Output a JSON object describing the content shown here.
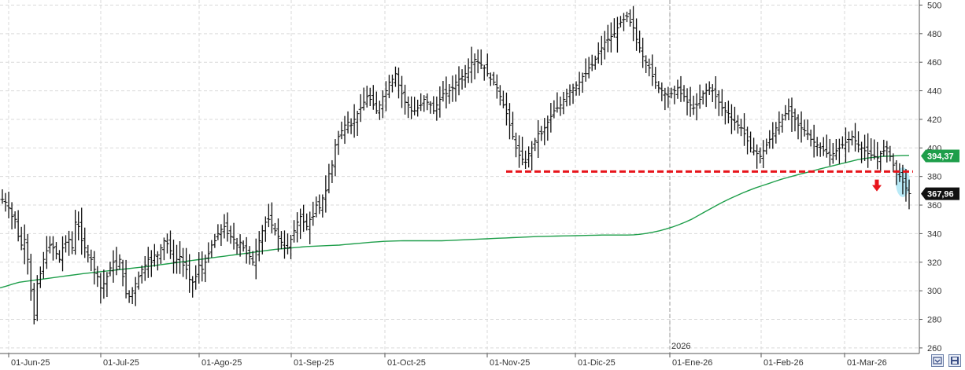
{
  "chart_data": {
    "type": "ohlc",
    "year_marker": "2026",
    "x_tick_labels": [
      "01-Jun-25",
      "01-Jul-25",
      "01-Ago-25",
      "01-Sep-25",
      "01-Oct-25",
      "01-Nov-25",
      "01-Dic-25",
      "01-Ene-26",
      "01-Feb-26",
      "01-Mar-26"
    ],
    "y_ticks": [
      260,
      280,
      300,
      320,
      340,
      360,
      380,
      400,
      420,
      440,
      460,
      480,
      500
    ],
    "ylim": [
      255,
      503
    ],
    "grid": true,
    "price_series_close": [
      364,
      362,
      358,
      352,
      350,
      338,
      332,
      336,
      322,
      300,
      280,
      305,
      312,
      322,
      328,
      332,
      330,
      326,
      322,
      330,
      334,
      336,
      330,
      348,
      345,
      335,
      330,
      325,
      322,
      315,
      310,
      302,
      305,
      310,
      316,
      320,
      315,
      322,
      310,
      298,
      296,
      300,
      305,
      310,
      315,
      318,
      322,
      320,
      325,
      325,
      330,
      335,
      333,
      328,
      320,
      322,
      324,
      318,
      315,
      308,
      306,
      310,
      318,
      315,
      320,
      326,
      332,
      335,
      340,
      343,
      345,
      340,
      338,
      336,
      332,
      334,
      330,
      326,
      324,
      320,
      328,
      335,
      342,
      348,
      350,
      346,
      342,
      338,
      334,
      330,
      330,
      336,
      342,
      348,
      352,
      348,
      345,
      350,
      352,
      360,
      358,
      365,
      370,
      382,
      388,
      402,
      408,
      412,
      416,
      418,
      416,
      420,
      424,
      428,
      432,
      436,
      434,
      430,
      426,
      430,
      436,
      440,
      446,
      448,
      452,
      444,
      438,
      432,
      430,
      426,
      426,
      428,
      430,
      434,
      432,
      430,
      426,
      430,
      434,
      438,
      438,
      440,
      442,
      446,
      448,
      450,
      452,
      456,
      460,
      462,
      460,
      458,
      456,
      452,
      448,
      446,
      442,
      436,
      430,
      424,
      416,
      408,
      400,
      395,
      392,
      390,
      396,
      400,
      405,
      410,
      410,
      414,
      418,
      422,
      426,
      428,
      430,
      434,
      438,
      440,
      442,
      444,
      446,
      450,
      452,
      456,
      458,
      462,
      466,
      470,
      474,
      476,
      478,
      480,
      484,
      488,
      490,
      492,
      488,
      484,
      476,
      470,
      464,
      460,
      456,
      450,
      446,
      442,
      440,
      438,
      436,
      438,
      440,
      442,
      438,
      436,
      432,
      430,
      428,
      430,
      434,
      438,
      440,
      442,
      440,
      436,
      432,
      428,
      426,
      424,
      420,
      418,
      416,
      414,
      410,
      405,
      400,
      398,
      396,
      394,
      398,
      402,
      406,
      410,
      414,
      418,
      420,
      424,
      426,
      422,
      420,
      416,
      414,
      412,
      410,
      406,
      404,
      402,
      400,
      398,
      396,
      395,
      396,
      398,
      400,
      402,
      404,
      406,
      408,
      405,
      402,
      400,
      398,
      396,
      395,
      394,
      393,
      396,
      398,
      400,
      394,
      388,
      384,
      380,
      376,
      372,
      368
    ],
    "ma_series": [
      302,
      303.3,
      304.7,
      306,
      306.6,
      307.2,
      307.8,
      308.4,
      309,
      309.6,
      310.2,
      310.8,
      311.4,
      312,
      312.5,
      313,
      313.5,
      314,
      314.5,
      315,
      315.5,
      316,
      316.5,
      317,
      317.6,
      318.2,
      318.8,
      319.4,
      320,
      320.6,
      321.2,
      321.8,
      322.4,
      323,
      323.6,
      324.2,
      324.8,
      325.4,
      326,
      326.6,
      327.2,
      327.8,
      328.4,
      329,
      329.4,
      329.8,
      330.2,
      330.6,
      331,
      331.2,
      331.4,
      331.6,
      331.8,
      332,
      332.4,
      332.8,
      333.2,
      333.6,
      334,
      334.3,
      334.6,
      334.8,
      334.9,
      335,
      335,
      335,
      335,
      335,
      335,
      335,
      335.2,
      335.4,
      335.6,
      335.8,
      336,
      336.2,
      336.4,
      336.6,
      336.8,
      337,
      337.2,
      337.4,
      337.6,
      337.8,
      338,
      338.1,
      338.2,
      338.3,
      338.4,
      338.5,
      338.6,
      338.7,
      338.8,
      338.9,
      339,
      339,
      339,
      339,
      339,
      339.2,
      339.6,
      340.2,
      341,
      342,
      343.2,
      344.6,
      346.2,
      348,
      350,
      352.5,
      355,
      357.5,
      360,
      362.3,
      364.5,
      366.5,
      368.5,
      370.3,
      372,
      373.5,
      375,
      376.5,
      378,
      379.3,
      380.5,
      381.7,
      382.8,
      384,
      385.2,
      386.3,
      387.4,
      388.5,
      389.6,
      390.7,
      391.8,
      392.6,
      393.2,
      393.7,
      394.1,
      394.3,
      394.5,
      394.7,
      394.8
    ],
    "support_level": 383.5,
    "last_price": {
      "value": 367.96,
      "label": "367,96"
    },
    "ma_last": {
      "value": 394.37,
      "label": "394,37"
    },
    "colors": {
      "bars": "#111111",
      "ma": "#1e9e4a",
      "support": "#e8141b",
      "arrow": "#e8141b",
      "highlight": "#7fd9f0",
      "price_tag_bg": "#111111",
      "ma_tag_bg": "#1e9e4a",
      "grid": "#d9d9d9"
    }
  },
  "toolbar": {
    "zoom_icon": "zoom-icon",
    "save_icon": "save-icon"
  }
}
